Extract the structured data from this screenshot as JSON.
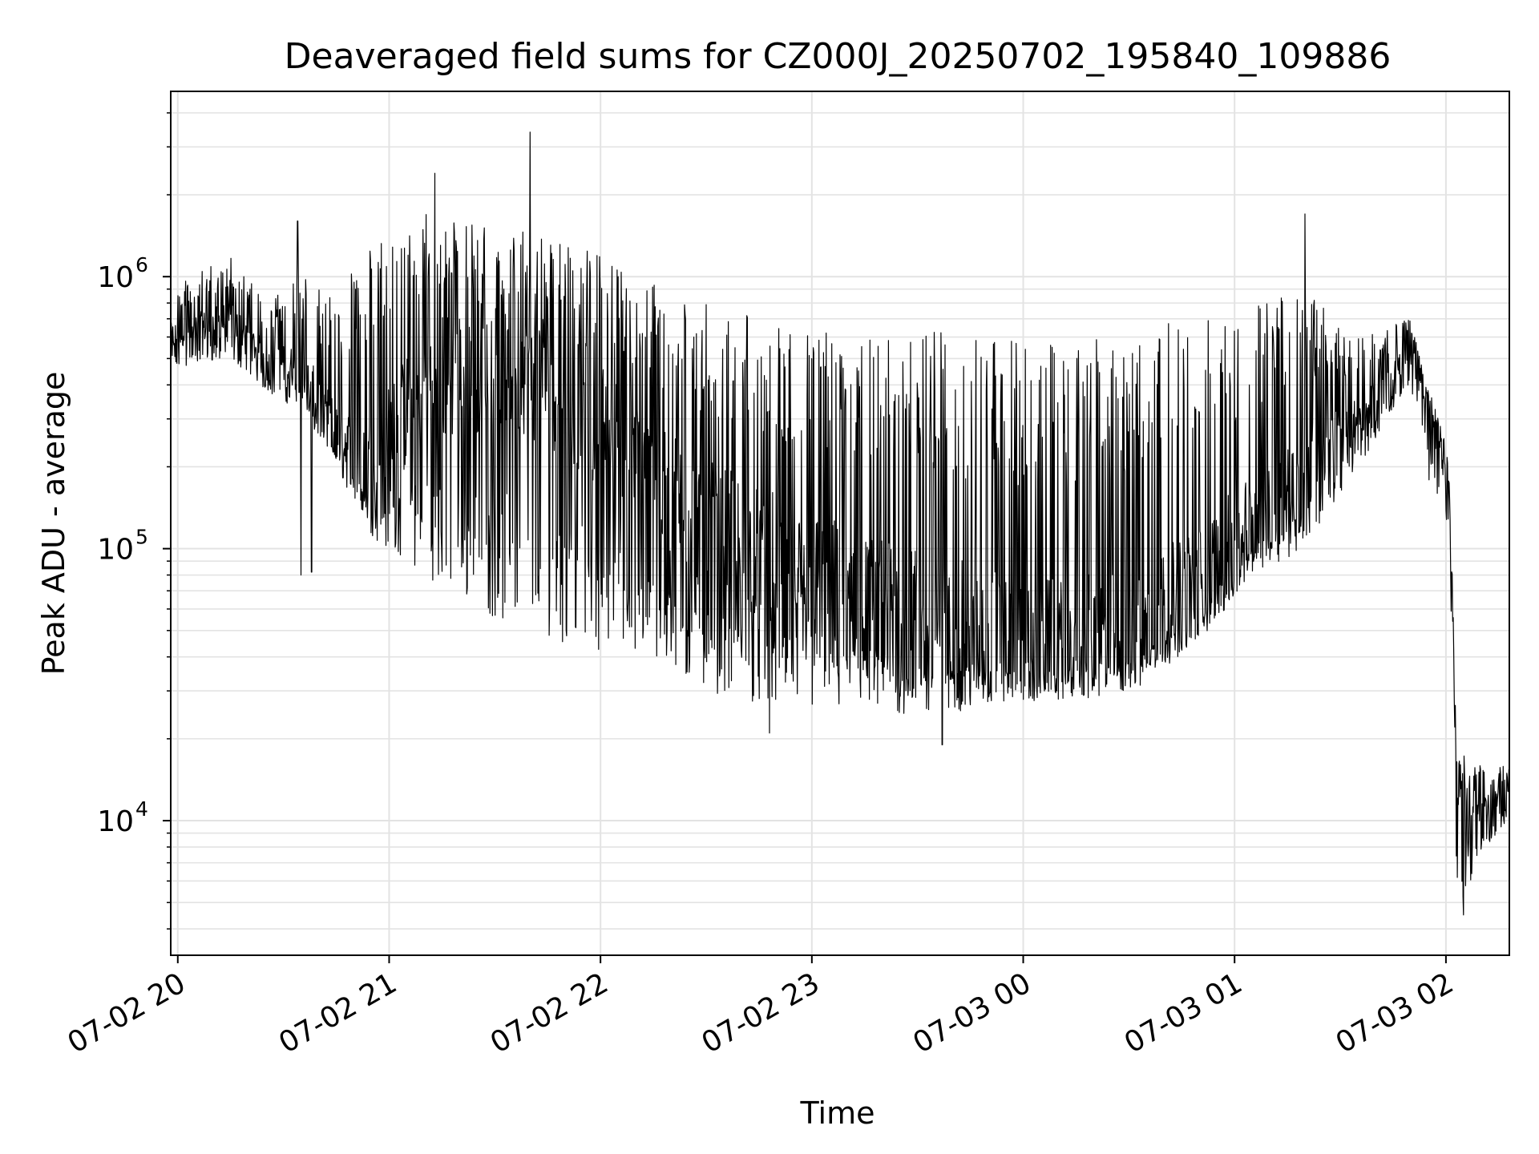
{
  "chart_data": {
    "type": "line",
    "title": "Deaveraged field sums for CZ000J_20250702_195840_109886",
    "xlabel": "Time",
    "ylabel": "Peak ADU - average",
    "y_scale": "log",
    "grid": true,
    "line_color": "#000000",
    "grid_color": "#e3e3e3",
    "xlim": [
      "07-02 19:58",
      "07-03 02:18"
    ],
    "ylim": [
      3200,
      4800000
    ],
    "x_ticks": [
      {
        "time": "07-02 20:00",
        "label": "07-02 20"
      },
      {
        "time": "07-02 21:00",
        "label": "07-02 21"
      },
      {
        "time": "07-02 22:00",
        "label": "07-02 22"
      },
      {
        "time": "07-02 23:00",
        "label": "07-02 23"
      },
      {
        "time": "07-03 00:00",
        "label": "07-03 00"
      },
      {
        "time": "07-03 01:00",
        "label": "07-03 01"
      },
      {
        "time": "07-03 02:00",
        "label": "07-03 02"
      }
    ],
    "y_ticks": [
      {
        "value": 10000,
        "base": "10",
        "exp": "4"
      },
      {
        "value": 100000,
        "base": "10",
        "exp": "5"
      },
      {
        "value": 1000000,
        "base": "10",
        "exp": "6"
      }
    ],
    "series": [
      {
        "envelope": [
          {
            "t": "07-02 19:58",
            "median": 600000,
            "low": 450000,
            "high": 900000
          },
          {
            "t": "07-02 20:15",
            "median": 700000,
            "low": 500000,
            "high": 1200000
          },
          {
            "t": "07-02 20:25",
            "median": 500000,
            "low": 380000,
            "high": 800000
          },
          {
            "t": "07-02 20:35",
            "median": 450000,
            "low": 320000,
            "high": 1000000
          },
          {
            "t": "07-02 20:45",
            "median": 270000,
            "low": 200000,
            "high": 900000
          },
          {
            "t": "07-02 20:55",
            "median": 200000,
            "low": 110000,
            "high": 1300000
          },
          {
            "t": "07-02 21:10",
            "median": 400000,
            "low": 80000,
            "high": 1800000
          },
          {
            "t": "07-02 21:30",
            "median": 500000,
            "low": 55000,
            "high": 1500000
          },
          {
            "t": "07-02 21:50",
            "median": 400000,
            "low": 45000,
            "high": 1400000
          },
          {
            "t": "07-02 22:10",
            "median": 200000,
            "low": 40000,
            "high": 1000000
          },
          {
            "t": "07-02 22:30",
            "median": 120000,
            "low": 30000,
            "high": 800000
          },
          {
            "t": "07-02 22:50",
            "median": 90000,
            "low": 26000,
            "high": 700000
          },
          {
            "t": "07-02 23:10",
            "median": 70000,
            "low": 25000,
            "high": 700000
          },
          {
            "t": "07-02 23:30",
            "median": 55000,
            "low": 24000,
            "high": 650000
          },
          {
            "t": "07-02 23:50",
            "median": 50000,
            "low": 26000,
            "high": 600000
          },
          {
            "t": "07-03 00:10",
            "median": 45000,
            "low": 28000,
            "high": 600000
          },
          {
            "t": "07-03 00:30",
            "median": 50000,
            "low": 30000,
            "high": 650000
          },
          {
            "t": "07-03 00:50",
            "median": 75000,
            "low": 45000,
            "high": 700000
          },
          {
            "t": "07-03 01:05",
            "median": 130000,
            "low": 80000,
            "high": 800000
          },
          {
            "t": "07-03 01:20",
            "median": 200000,
            "low": 100000,
            "high": 900000
          },
          {
            "t": "07-03 01:35",
            "median": 300000,
            "low": 200000,
            "high": 600000
          },
          {
            "t": "07-03 01:50",
            "median": 520000,
            "low": 400000,
            "high": 700000
          },
          {
            "t": "07-03 01:55",
            "median": 330000,
            "low": 180000,
            "high": 400000
          },
          {
            "t": "07-03 02:01",
            "median": 170000,
            "low": 120000,
            "high": 220000
          },
          {
            "t": "07-03 02:03",
            "median": 14000,
            "low": 4500,
            "high": 18000
          },
          {
            "t": "07-03 02:10",
            "median": 11000,
            "low": 7500,
            "high": 16000
          },
          {
            "t": "07-03 02:18",
            "median": 12000,
            "low": 10000,
            "high": 16000
          }
        ],
        "spikes": [
          {
            "t": "07-02 20:34",
            "value": 1600000
          },
          {
            "t": "07-02 20:35",
            "value": 80000
          },
          {
            "t": "07-02 20:38",
            "value": 82000
          },
          {
            "t": "07-02 21:40",
            "value": 3400000
          },
          {
            "t": "07-02 21:13",
            "value": 2400000
          },
          {
            "t": "07-02 22:48",
            "value": 21000
          },
          {
            "t": "07-02 23:37",
            "value": 19000
          },
          {
            "t": "07-03 01:20",
            "value": 1700000
          },
          {
            "t": "07-03 02:05",
            "value": 4500
          }
        ]
      }
    ]
  }
}
